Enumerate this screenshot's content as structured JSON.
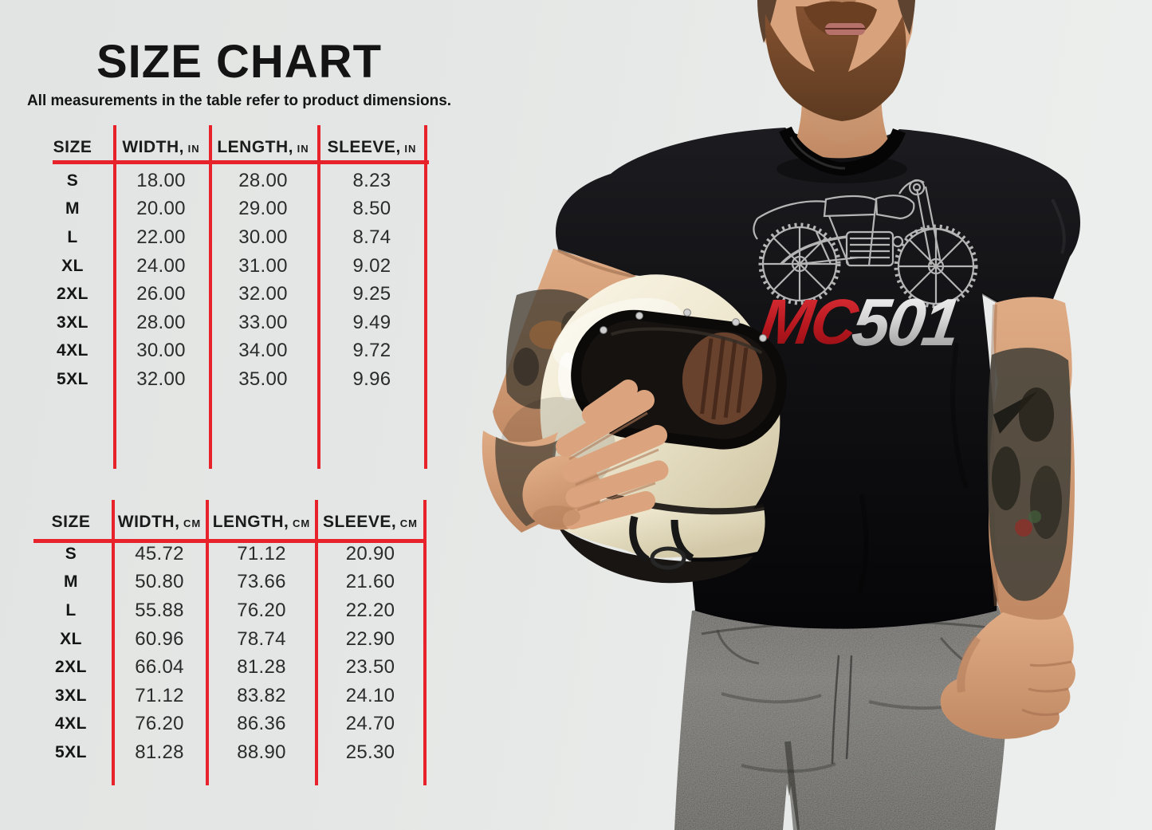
{
  "header": {
    "title": "SIZE CHART",
    "subtitle": "All measurements in the table refer to product dimensions."
  },
  "tables": [
    {
      "name": "inches",
      "columns": [
        {
          "label": "SIZE",
          "unit": ""
        },
        {
          "label": "WIDTH,",
          "unit": "IN"
        },
        {
          "label": "LENGTH,",
          "unit": "IN"
        },
        {
          "label": "SLEEVE,",
          "unit": "IN"
        }
      ],
      "rows": [
        {
          "size": "S",
          "width": "18.00",
          "length": "28.00",
          "sleeve": "8.23"
        },
        {
          "size": "M",
          "width": "20.00",
          "length": "29.00",
          "sleeve": "8.50"
        },
        {
          "size": "L",
          "width": "22.00",
          "length": "30.00",
          "sleeve": "8.74"
        },
        {
          "size": "XL",
          "width": "24.00",
          "length": "31.00",
          "sleeve": "9.02"
        },
        {
          "size": "2XL",
          "width": "26.00",
          "length": "32.00",
          "sleeve": "9.25"
        },
        {
          "size": "3XL",
          "width": "28.00",
          "length": "33.00",
          "sleeve": "9.49"
        },
        {
          "size": "4XL",
          "width": "30.00",
          "length": "34.00",
          "sleeve": "9.72"
        },
        {
          "size": "5XL",
          "width": "32.00",
          "length": "35.00",
          "sleeve": "9.96"
        }
      ]
    },
    {
      "name": "centimeters",
      "columns": [
        {
          "label": "SIZE",
          "unit": ""
        },
        {
          "label": "WIDTH,",
          "unit": "CM"
        },
        {
          "label": "LENGTH,",
          "unit": "CM"
        },
        {
          "label": "SLEEVE,",
          "unit": "CM"
        }
      ],
      "rows": [
        {
          "size": "S",
          "width": "45.72",
          "length": "71.12",
          "sleeve": "20.90"
        },
        {
          "size": "M",
          "width": "50.80",
          "length": "73.66",
          "sleeve": "21.60"
        },
        {
          "size": "L",
          "width": "55.88",
          "length": "76.20",
          "sleeve": "22.20"
        },
        {
          "size": "XL",
          "width": "60.96",
          "length": "78.74",
          "sleeve": "22.90"
        },
        {
          "size": "2XL",
          "width": "66.04",
          "length": "81.28",
          "sleeve": "23.50"
        },
        {
          "size": "3XL",
          "width": "71.12",
          "length": "83.82",
          "sleeve": "24.10"
        },
        {
          "size": "4XL",
          "width": "76.20",
          "length": "86.36",
          "sleeve": "24.70"
        },
        {
          "size": "5XL",
          "width": "81.28",
          "length": "88.90",
          "sleeve": "25.30"
        }
      ]
    }
  ],
  "photo": {
    "shirt_graphic": {
      "mc": "MC",
      "model": "501"
    }
  },
  "colors": {
    "table_line_red": "#e8222a",
    "mc_red": "#c31e27",
    "model_silver": "#d7d7d7",
    "text": "#141414"
  }
}
